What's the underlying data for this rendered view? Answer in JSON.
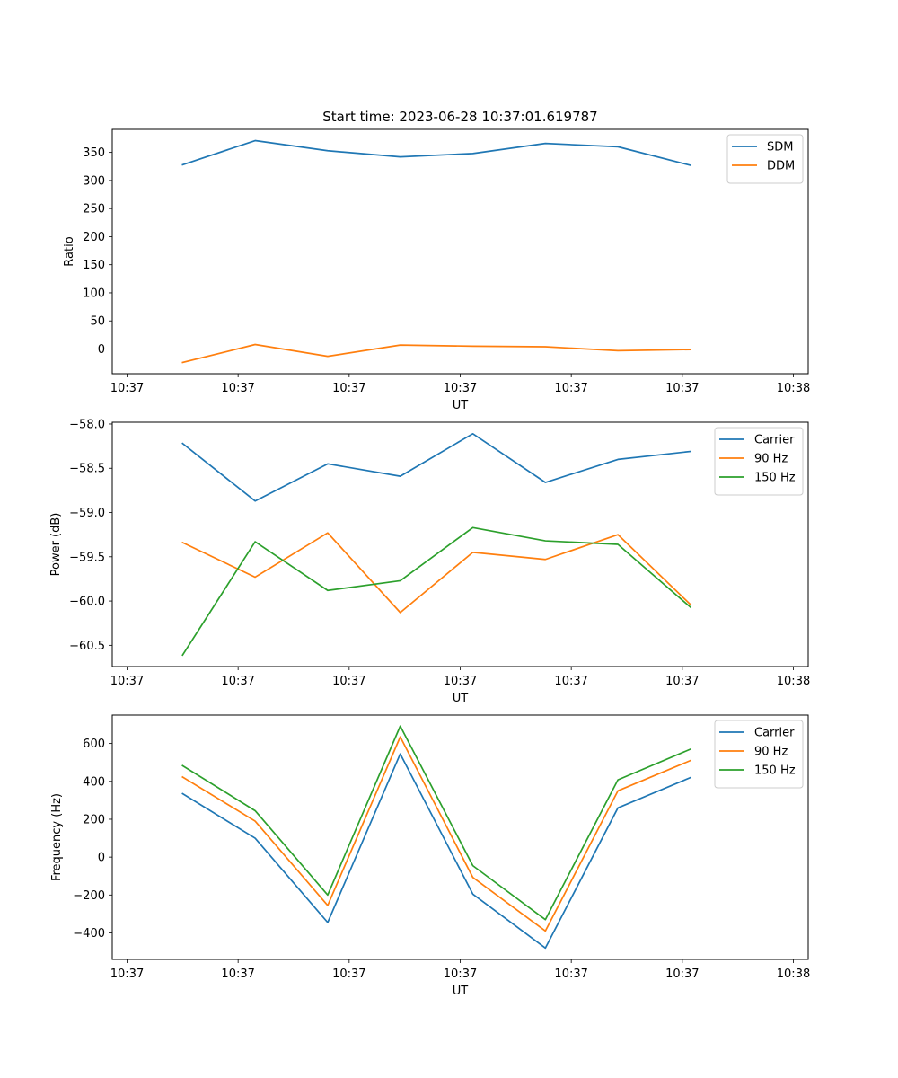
{
  "chart_data": [
    {
      "type": "line",
      "title": "Start time: 2023-06-28 10:37:01.619787",
      "xlabel": "UT",
      "ylabel": "Ratio",
      "ylim": [
        -44,
        391
      ],
      "yticks": [
        0,
        50,
        100,
        150,
        200,
        250,
        300,
        350
      ],
      "xlim": [
        -0.2,
        9.2
      ],
      "xticks": [
        0,
        1.5,
        3,
        4.5,
        6,
        7.5,
        9
      ],
      "xtick_labels": [
        "10:37",
        "10:37",
        "10:37",
        "10:37",
        "10:37",
        "10:37",
        "10:38"
      ],
      "x": [
        0.75,
        1.73,
        2.71,
        3.69,
        4.67,
        5.65,
        6.63,
        7.61
      ],
      "legend_position": "top-right",
      "series": [
        {
          "name": "SDM",
          "color": "#1f77b4",
          "values": [
            328,
            371,
            353,
            342,
            348,
            366,
            360,
            327
          ]
        },
        {
          "name": "DDM",
          "color": "#ff7f0e",
          "values": [
            -24,
            8,
            -13,
            7,
            5,
            4,
            -3,
            -1
          ]
        }
      ]
    },
    {
      "type": "line",
      "title": "",
      "xlabel": "UT",
      "ylabel": "Power (dB)",
      "ylim": [
        -60.74,
        -57.98
      ],
      "yticks": [
        -60.5,
        -60.0,
        -59.5,
        -59.0,
        -58.5,
        -58.0
      ],
      "ytick_labels": [
        "−60.5",
        "−60.0",
        "−59.5",
        "−59.0",
        "−58.5",
        "−58.0"
      ],
      "xlim": [
        -0.2,
        9.2
      ],
      "xticks": [
        0,
        1.5,
        3,
        4.5,
        6,
        7.5,
        9
      ],
      "xtick_labels": [
        "10:37",
        "10:37",
        "10:37",
        "10:37",
        "10:37",
        "10:37",
        "10:38"
      ],
      "x": [
        0.75,
        1.73,
        2.71,
        3.69,
        4.67,
        5.65,
        6.63,
        7.61
      ],
      "legend_position": "top-right",
      "series": [
        {
          "name": "Carrier",
          "color": "#1f77b4",
          "values": [
            -58.22,
            -58.87,
            -58.45,
            -58.59,
            -58.11,
            -58.66,
            -58.4,
            -58.31
          ]
        },
        {
          "name": "90 Hz",
          "color": "#ff7f0e",
          "values": [
            -59.34,
            -59.73,
            -59.23,
            -60.13,
            -59.45,
            -59.53,
            -59.25,
            -60.04
          ]
        },
        {
          "name": "150 Hz",
          "color": "#2ca02c",
          "values": [
            -60.61,
            -59.33,
            -59.88,
            -59.77,
            -59.17,
            -59.32,
            -59.36,
            -60.07
          ]
        }
      ]
    },
    {
      "type": "line",
      "title": "",
      "xlabel": "UT",
      "ylabel": "Frequency (Hz)",
      "ylim": [
        -540,
        750
      ],
      "yticks": [
        -400,
        -200,
        0,
        200,
        400,
        600
      ],
      "ytick_labels": [
        "−400",
        "−200",
        "0",
        "200",
        "400",
        "600"
      ],
      "xlim": [
        -0.2,
        9.2
      ],
      "xticks": [
        0,
        1.5,
        3,
        4.5,
        6,
        7.5,
        9
      ],
      "xtick_labels": [
        "10:37",
        "10:37",
        "10:37",
        "10:37",
        "10:37",
        "10:37",
        "10:38"
      ],
      "x": [
        0.75,
        1.73,
        2.71,
        3.69,
        4.67,
        5.65,
        6.63,
        7.61
      ],
      "legend_position": "top-right",
      "series": [
        {
          "name": "Carrier",
          "color": "#1f77b4",
          "values": [
            335,
            100,
            -345,
            545,
            -195,
            -480,
            260,
            420
          ]
        },
        {
          "name": "90 Hz",
          "color": "#ff7f0e",
          "values": [
            423,
            190,
            -255,
            635,
            -107,
            -390,
            350,
            510
          ]
        },
        {
          "name": "150 Hz",
          "color": "#2ca02c",
          "values": [
            483,
            245,
            -200,
            692,
            -45,
            -330,
            408,
            570
          ]
        }
      ]
    }
  ]
}
